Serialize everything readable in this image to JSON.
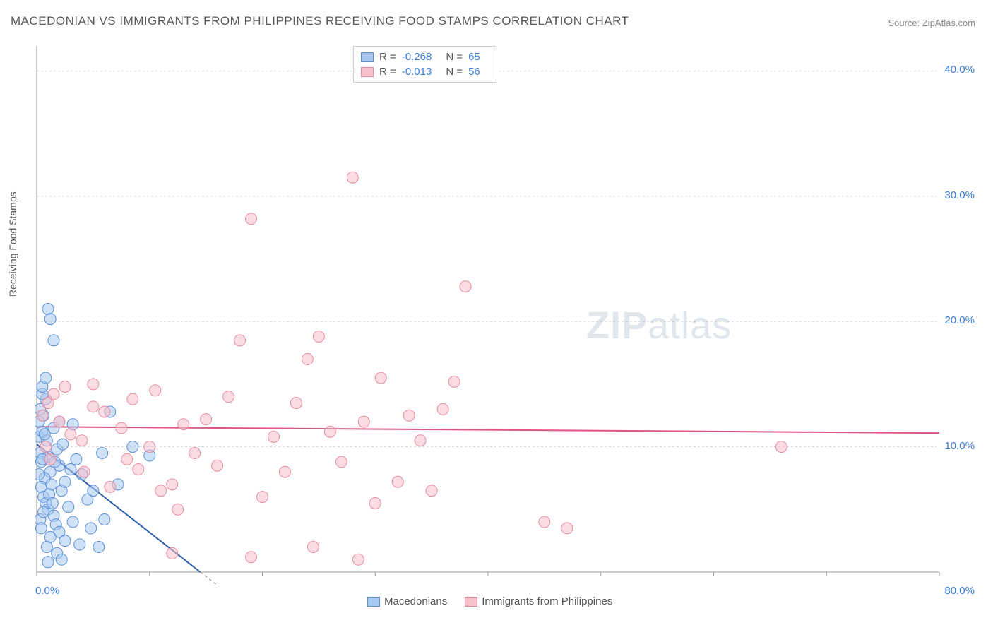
{
  "title": "MACEDONIAN VS IMMIGRANTS FROM PHILIPPINES RECEIVING FOOD STAMPS CORRELATION CHART",
  "source": "Source: ZipAtlas.com",
  "ylabel": "Receiving Food Stamps",
  "watermark_bold": "ZIP",
  "watermark_rest": "atlas",
  "chart": {
    "type": "scatter",
    "background_color": "#ffffff",
    "grid_color": "#d8d8d8",
    "grid_dash": "3,3",
    "axis_color": "#999999",
    "tick_label_color": "#3b7dd8",
    "tick_fontsize": 15,
    "xlim": [
      0,
      80
    ],
    "ylim": [
      0,
      42
    ],
    "x_ticks": [
      0,
      80
    ],
    "x_tick_labels": [
      "0.0%",
      "80.0%"
    ],
    "x_minor_ticks": [
      10,
      20,
      30,
      40,
      50,
      60,
      70
    ],
    "y_ticks": [
      10,
      20,
      30,
      40
    ],
    "y_tick_labels": [
      "10.0%",
      "20.0%",
      "30.0%",
      "40.0%"
    ],
    "marker_radius": 8,
    "marker_opacity": 0.55,
    "line_width": 2,
    "series": [
      {
        "name": "Macedonians",
        "fill_color": "#a8c8f0",
        "stroke_color": "#5b8fd6",
        "line_color": "#2d5fa8",
        "R": "-0.268",
        "N": "65",
        "trend": {
          "x1": 0,
          "y1": 10.2,
          "x2": 14.5,
          "y2": 0
        },
        "points": [
          [
            0.2,
            10.8
          ],
          [
            0.3,
            9.5
          ],
          [
            0.5,
            11.2
          ],
          [
            0.4,
            8.8
          ],
          [
            0.6,
            12.5
          ],
          [
            0.8,
            13.8
          ],
          [
            0.3,
            13.0
          ],
          [
            0.5,
            14.2
          ],
          [
            0.2,
            12.0
          ],
          [
            0.9,
            10.5
          ],
          [
            1.0,
            9.2
          ],
          [
            1.2,
            8.0
          ],
          [
            0.7,
            7.5
          ],
          [
            0.4,
            6.8
          ],
          [
            1.5,
            11.5
          ],
          [
            1.8,
            9.8
          ],
          [
            2.0,
            8.5
          ],
          [
            1.3,
            7.0
          ],
          [
            0.6,
            6.0
          ],
          [
            0.8,
            5.5
          ],
          [
            1.0,
            5.0
          ],
          [
            1.5,
            4.5
          ],
          [
            2.2,
            6.5
          ],
          [
            2.5,
            7.2
          ],
          [
            3.0,
            8.2
          ],
          [
            3.5,
            9.0
          ],
          [
            4.0,
            7.8
          ],
          [
            2.8,
            5.2
          ],
          [
            1.7,
            3.8
          ],
          [
            2.0,
            3.2
          ],
          [
            1.2,
            2.8
          ],
          [
            0.9,
            2.0
          ],
          [
            2.5,
            2.5
          ],
          [
            3.2,
            4.0
          ],
          [
            4.5,
            5.8
          ],
          [
            5.0,
            6.5
          ],
          [
            5.8,
            9.5
          ],
          [
            6.5,
            12.8
          ],
          [
            8.5,
            10.0
          ],
          [
            10.0,
            9.3
          ],
          [
            7.2,
            7.0
          ],
          [
            6.0,
            4.2
          ],
          [
            4.8,
            3.5
          ],
          [
            3.8,
            2.2
          ],
          [
            5.5,
            2.0
          ],
          [
            1.0,
            21.0
          ],
          [
            1.2,
            20.2
          ],
          [
            1.5,
            18.5
          ],
          [
            0.5,
            14.8
          ],
          [
            0.8,
            15.5
          ],
          [
            2.0,
            12.0
          ],
          [
            3.2,
            11.8
          ],
          [
            1.0,
            0.8
          ],
          [
            1.8,
            1.5
          ],
          [
            2.2,
            1.0
          ],
          [
            0.3,
            4.2
          ],
          [
            0.4,
            3.5
          ],
          [
            0.6,
            4.8
          ],
          [
            1.1,
            6.2
          ],
          [
            1.4,
            5.5
          ],
          [
            1.6,
            8.8
          ],
          [
            2.3,
            10.2
          ],
          [
            0.2,
            7.8
          ],
          [
            0.5,
            9.0
          ],
          [
            0.7,
            11.0
          ]
        ]
      },
      {
        "name": "Immigrants from Philippines",
        "fill_color": "#f5c0ca",
        "stroke_color": "#e88ba0",
        "line_color": "#e05580",
        "R": "-0.013",
        "N": "56",
        "trend": {
          "x1": 0,
          "y1": 11.6,
          "x2": 80,
          "y2": 11.1
        },
        "points": [
          [
            2.0,
            12.0
          ],
          [
            3.0,
            11.0
          ],
          [
            4.0,
            10.5
          ],
          [
            5.0,
            13.2
          ],
          [
            6.0,
            12.8
          ],
          [
            7.5,
            11.5
          ],
          [
            8.0,
            9.0
          ],
          [
            9.0,
            8.2
          ],
          [
            10.0,
            10.0
          ],
          [
            11.0,
            6.5
          ],
          [
            12.0,
            7.0
          ],
          [
            12.5,
            5.0
          ],
          [
            14.0,
            9.5
          ],
          [
            15.0,
            12.2
          ],
          [
            16.0,
            8.5
          ],
          [
            17.0,
            14.0
          ],
          [
            18.0,
            18.5
          ],
          [
            19.0,
            28.2
          ],
          [
            20.0,
            6.0
          ],
          [
            21.0,
            10.8
          ],
          [
            22.0,
            8.0
          ],
          [
            23.0,
            13.5
          ],
          [
            24.0,
            17.0
          ],
          [
            25.0,
            18.8
          ],
          [
            26.0,
            11.2
          ],
          [
            27.0,
            8.8
          ],
          [
            28.0,
            31.5
          ],
          [
            29.0,
            12.0
          ],
          [
            30.0,
            5.5
          ],
          [
            30.5,
            15.5
          ],
          [
            32.0,
            7.2
          ],
          [
            34.0,
            10.5
          ],
          [
            35.0,
            6.5
          ],
          [
            36.0,
            13.0
          ],
          [
            37.0,
            15.2
          ],
          [
            38.0,
            22.8
          ],
          [
            28.5,
            1.0
          ],
          [
            19.0,
            1.2
          ],
          [
            24.5,
            2.0
          ],
          [
            12.0,
            1.5
          ],
          [
            1.0,
            13.5
          ],
          [
            1.5,
            14.2
          ],
          [
            2.5,
            14.8
          ],
          [
            0.8,
            10.0
          ],
          [
            1.2,
            9.0
          ],
          [
            33.0,
            12.5
          ],
          [
            45.0,
            4.0
          ],
          [
            47.0,
            3.5
          ],
          [
            66.0,
            10.0
          ],
          [
            5.0,
            15.0
          ],
          [
            8.5,
            13.8
          ],
          [
            10.5,
            14.5
          ],
          [
            13.0,
            11.8
          ],
          [
            6.5,
            6.8
          ],
          [
            4.2,
            8.0
          ],
          [
            0.5,
            12.5
          ]
        ]
      }
    ]
  },
  "legend_bottom": [
    {
      "label": "Macedonians",
      "fill": "#a8c8f0",
      "stroke": "#5b8fd6"
    },
    {
      "label": "Immigrants from Philippines",
      "fill": "#f5c0ca",
      "stroke": "#e88ba0"
    }
  ]
}
